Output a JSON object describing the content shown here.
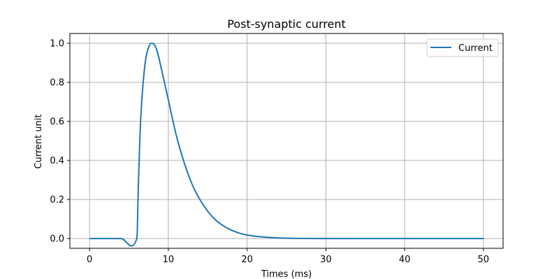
{
  "chart_data": {
    "type": "line",
    "title": "Post-synaptic current",
    "xlabel": "Times (ms)",
    "ylabel": "Current unit",
    "xlim": [
      -2.5,
      52.5
    ],
    "ylim": [
      -0.05,
      1.05
    ],
    "xticks": [
      0,
      10,
      20,
      30,
      40,
      50
    ],
    "yticks": [
      0.0,
      0.2,
      0.4,
      0.6,
      0.8,
      1.0
    ],
    "xtick_labels": [
      "0",
      "10",
      "20",
      "30",
      "40",
      "50"
    ],
    "ytick_labels": [
      "0.0",
      "0.2",
      "0.4",
      "0.6",
      "0.8",
      "1.0"
    ],
    "grid": true,
    "legend_position": "top-right",
    "series": [
      {
        "name": "Current",
        "color": "#1f77b4",
        "x": [
          0,
          2,
          4,
          6,
          6.2,
          6.5,
          7,
          7.5,
          8,
          8.5,
          9,
          10,
          11,
          12,
          13,
          14,
          15,
          16,
          17,
          18,
          19,
          20,
          22,
          24,
          26,
          28,
          30,
          35,
          40,
          45,
          50
        ],
        "y": [
          0.0,
          0.0,
          0.0,
          0.0,
          0.28,
          0.62,
          0.88,
          0.98,
          1.0,
          0.97,
          0.89,
          0.71,
          0.53,
          0.39,
          0.28,
          0.2,
          0.14,
          0.095,
          0.065,
          0.043,
          0.028,
          0.018,
          0.008,
          0.003,
          0.001,
          0.0005,
          0.0002,
          0.0,
          0.0,
          0.0,
          0.0
        ]
      }
    ]
  }
}
